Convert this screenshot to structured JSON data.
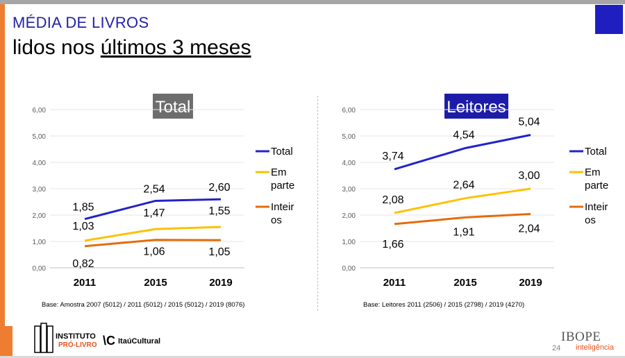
{
  "header": {
    "title_line1": "MÉDIA DE LIVROS",
    "title_line2_a": "lidos nos ",
    "title_line2_u": "últimos 3 meses"
  },
  "chart_data": [
    {
      "type": "line",
      "title": "Total",
      "title_bg": "#6d6d6d",
      "categories": [
        "2011",
        "2015",
        "2019"
      ],
      "ylim": [
        0,
        6
      ],
      "yticks": [
        "0,00",
        "1,00",
        "2,00",
        "3,00",
        "4,00",
        "5,00",
        "6,00"
      ],
      "series": [
        {
          "name": "Total",
          "color": "#2222cc",
          "values": [
            1.85,
            2.54,
            2.6
          ],
          "labels": [
            "1,85",
            "2,54",
            "2,60"
          ]
        },
        {
          "name": "Em parte",
          "color": "#ffc000",
          "values": [
            1.03,
            1.47,
            1.55
          ],
          "labels": [
            "1,03",
            "1,47",
            "1,55"
          ]
        },
        {
          "name": "Inteiros",
          "color": "#e36c0a",
          "values": [
            0.82,
            1.06,
            1.05
          ],
          "labels": [
            "0,82",
            "1,06",
            "1,05"
          ]
        }
      ],
      "legend": [
        "Total",
        "Em parte",
        "Inteir os"
      ],
      "base": "Base: Amostra 2007 (5012) / 2011 (5012) / 2015 (5012) / 2019 (8076)"
    },
    {
      "type": "line",
      "title": "Leitores",
      "title_bg": "#1c1ca8",
      "categories": [
        "2011",
        "2015",
        "2019"
      ],
      "ylim": [
        0,
        6
      ],
      "yticks": [
        "0,00",
        "1,00",
        "2,00",
        "3,00",
        "4,00",
        "5,00",
        "6,00"
      ],
      "series": [
        {
          "name": "Total",
          "color": "#2222cc",
          "values": [
            3.74,
            4.54,
            5.04
          ],
          "labels": [
            "3,74",
            "4,54",
            "5,04"
          ]
        },
        {
          "name": "Em parte",
          "color": "#ffc000",
          "values": [
            2.08,
            2.64,
            3.0
          ],
          "labels": [
            "2,08",
            "2,64",
            "3,00"
          ]
        },
        {
          "name": "Inteiros",
          "color": "#e36c0a",
          "values": [
            1.66,
            1.91,
            2.04
          ],
          "labels": [
            "1,66",
            "1,91",
            "2,04"
          ]
        }
      ],
      "legend": [
        "Total",
        "Em parte",
        "Inteir os"
      ],
      "base": "Base: Leitores 2011 (2506) / 2015 (2798) / 2019 (4270)"
    }
  ],
  "footer": {
    "logo_line1": "INSTITUTO",
    "logo_line2": "PRÓ-LIVRO",
    "logo_mark": "\\C",
    "logo_itau": "ItaúCultural",
    "page": "24",
    "ibope": "IBOPE",
    "intel": "inteligência"
  }
}
